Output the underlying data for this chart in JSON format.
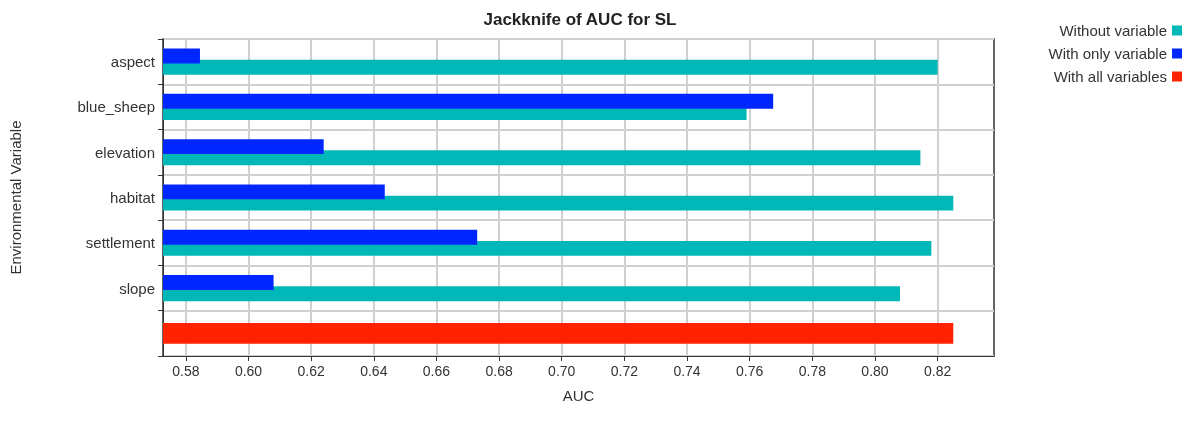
{
  "chart_data": {
    "type": "bar",
    "orientation": "horizontal",
    "title": "Jackknife of AUC for SL",
    "xlabel": "AUC",
    "ylabel": "Environmental Variable",
    "categories": [
      "aspect",
      "blue_sheep",
      "elevation",
      "habitat",
      "settlement",
      "slope",
      null
    ],
    "series": [
      {
        "name": "Without variable",
        "color": "#00b8b8",
        "values": [
          0.82,
          0.759,
          0.8145,
          0.825,
          0.818,
          0.808,
          null
        ]
      },
      {
        "name": "With only variable",
        "color": "#0026ff",
        "values": [
          0.5845,
          0.7675,
          0.624,
          0.6435,
          0.673,
          0.608,
          null
        ]
      },
      {
        "name": "With all variables",
        "color": "#ff2200",
        "values": [
          null,
          null,
          null,
          null,
          null,
          null,
          0.825
        ]
      }
    ],
    "xlim": [
      0.5727,
      0.838
    ],
    "xticks": [
      0.58,
      {
        "value": 0.6,
        "label": "0.60"
      },
      0.62,
      0.64,
      0.66,
      0.68,
      {
        "value": 0.7,
        "label": "0.70"
      },
      0.72,
      0.74,
      0.76,
      0.78,
      {
        "value": 0.8,
        "label": "0.80"
      },
      0.82
    ],
    "grid": true,
    "legend": "top right"
  }
}
